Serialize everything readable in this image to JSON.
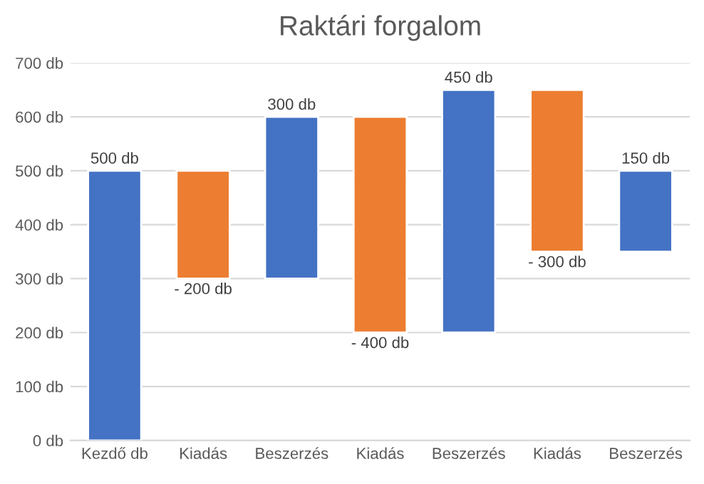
{
  "chart_data": {
    "type": "bar",
    "title": "Raktári forgalom",
    "categories": [
      "Kezdő db",
      "Kiadás",
      "Beszerzés",
      "Kiadás",
      "Beszerzés",
      "Kiadás",
      "Beszerzés"
    ],
    "values": [
      500,
      -200,
      300,
      -400,
      450,
      -300,
      150
    ],
    "base": [
      0,
      500,
      300,
      600,
      200,
      650,
      350
    ],
    "colors": [
      "#4472c4",
      "#ed7d31",
      "#4472c4",
      "#ed7d31",
      "#4472c4",
      "#ed7d31",
      "#4472c4"
    ],
    "value_labels": [
      "500 db",
      "- 200 db",
      "300 db",
      "- 400 db",
      "450 db",
      "- 300 db",
      "150 db"
    ],
    "ylim": [
      0,
      700
    ],
    "yticks": [
      {
        "value": 0,
        "label": "0 db"
      },
      {
        "value": 100,
        "label": "100 db"
      },
      {
        "value": 200,
        "label": "200 db"
      },
      {
        "value": 300,
        "label": "300 db"
      },
      {
        "value": 400,
        "label": "400 db"
      },
      {
        "value": 500,
        "label": "500 db"
      },
      {
        "value": 600,
        "label": "600 db"
      },
      {
        "value": 700,
        "label": "700 db"
      }
    ],
    "grid": "y",
    "legend": false
  }
}
